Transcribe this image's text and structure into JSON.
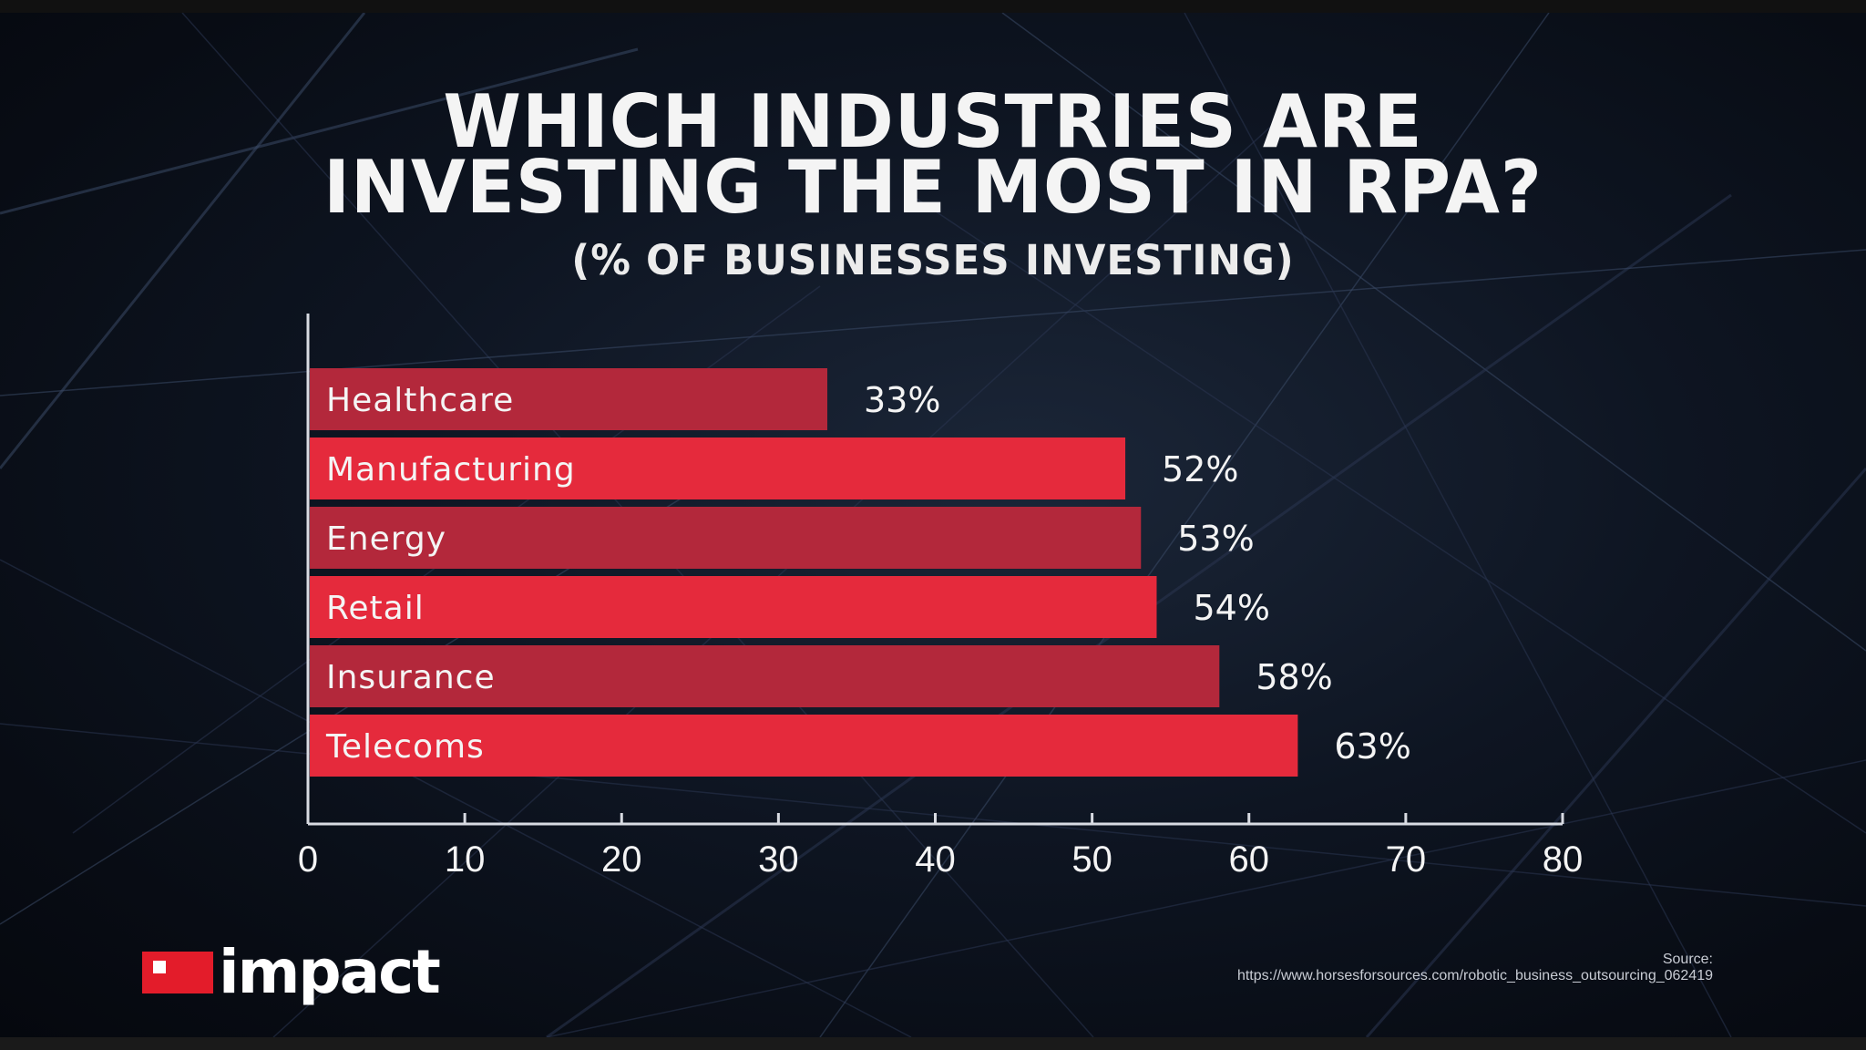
{
  "title_line1": "WHICH INDUSTRIES ARE",
  "title_line2": "INVESTING THE MOST IN RPA?",
  "subtitle": "(% OF BUSINESSES INVESTING)",
  "brand": "impact",
  "source_label": "Source:",
  "source_url": "https://www.horsesforsources.com/robotic_business_outsourcing_062419",
  "colors": {
    "bar_bright": "#e52a3c",
    "bar_dim": "#b3283b",
    "axis": "#d8dbe2",
    "text": "#f4f4f4"
  },
  "chart_data": {
    "type": "bar",
    "orientation": "horizontal",
    "categories": [
      "Healthcare",
      "Manufacturing",
      "Energy",
      "Retail",
      "Insurance",
      "Telecoms"
    ],
    "values": [
      33,
      52,
      53,
      54,
      58,
      63
    ],
    "value_labels": [
      "33%",
      "52%",
      "53%",
      "54%",
      "58%",
      "63%"
    ],
    "xlim": [
      0,
      80
    ],
    "xticks": [
      0,
      10,
      20,
      30,
      40,
      50,
      60,
      70,
      80
    ],
    "grid": false,
    "title": "WHICH INDUSTRIES ARE INVESTING THE MOST IN RPA?",
    "subtitle": "(% OF BUSINESSES INVESTING)"
  }
}
